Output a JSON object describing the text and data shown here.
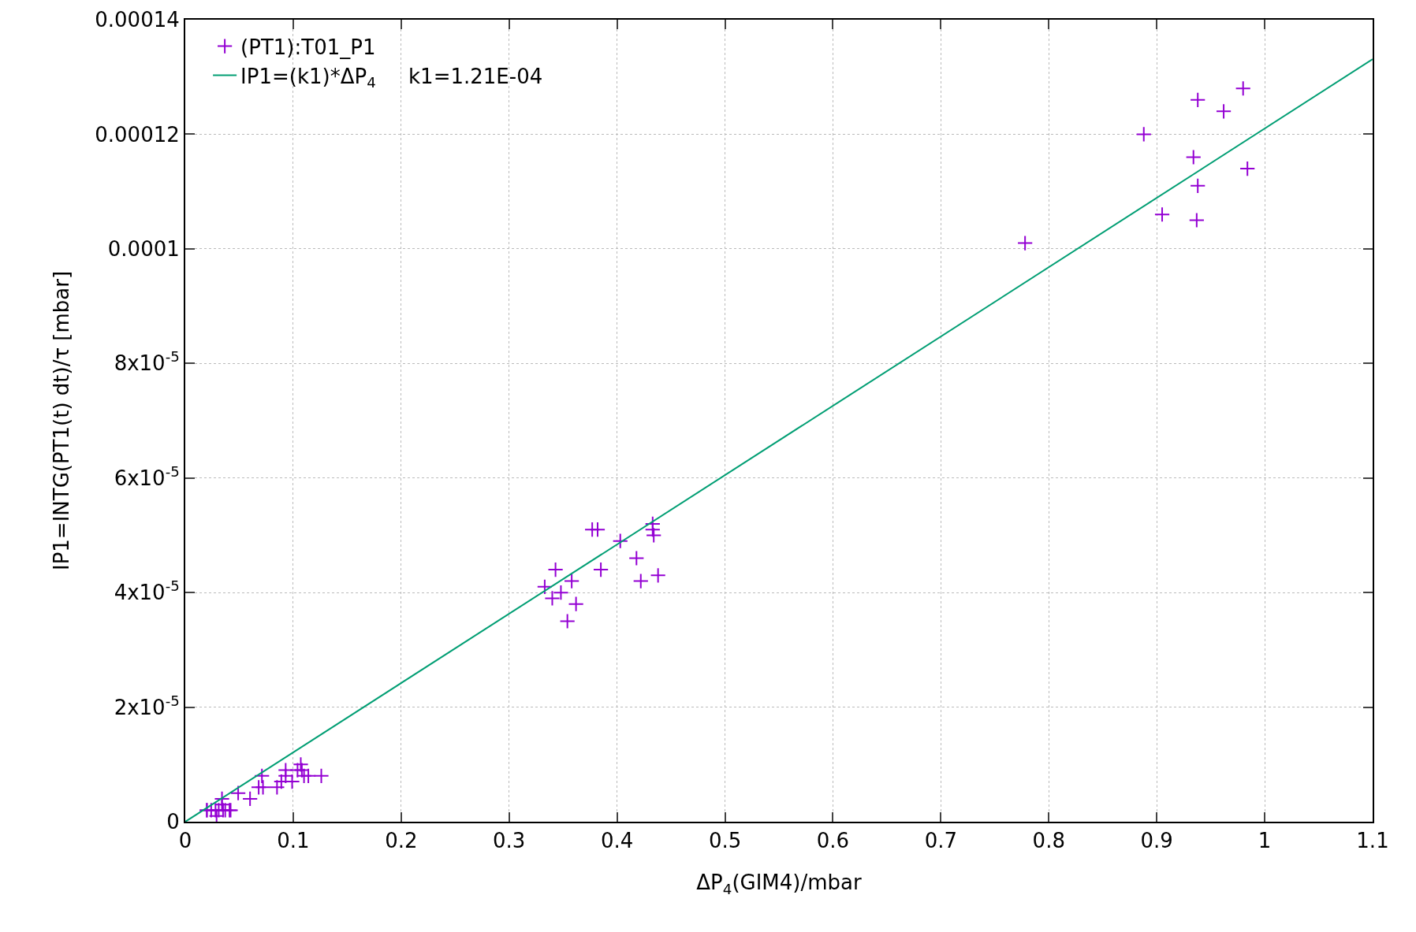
{
  "chart_data": {
    "type": "scatter",
    "xlabel": "ΔP$_{4}$(GIM4)/mbar",
    "ylabel": "IP1=INTG(PT1(t) dt)/τ [mbar]",
    "xlim": [
      0,
      1.1
    ],
    "xticks": [
      0,
      0.1,
      0.2,
      0.3,
      0.4,
      0.5,
      0.6,
      0.7,
      0.8,
      0.9,
      1,
      1.1
    ],
    "ylim": [
      0,
      0.00014
    ],
    "yticks": [
      0,
      {
        "value": 2e-05,
        "label": "2x10$^{-5}$"
      },
      {
        "value": 4e-05,
        "label": "4x10$^{-5}$"
      },
      {
        "value": 6e-05,
        "label": "6x10$^{-5}$"
      },
      {
        "value": 8e-05,
        "label": "8x10$^{-5}$"
      },
      0.0001,
      0.00012,
      0.00014
    ],
    "grid": true,
    "legend": "top left",
    "series": [
      {
        "name": "(PT1):T01_P1",
        "marker": "cross",
        "color": "#9400d3",
        "x": [
          0.02,
          0.02,
          0.024,
          0.028,
          0.029,
          0.031,
          0.034,
          0.034,
          0.035,
          0.037,
          0.041,
          0.042,
          0.049,
          0.06,
          0.068,
          0.071,
          0.072,
          0.085,
          0.089,
          0.093,
          0.093,
          0.099,
          0.104,
          0.107,
          0.108,
          0.11,
          0.114,
          0.126,
          0.333,
          0.343,
          0.34,
          0.348,
          0.354,
          0.358,
          0.362,
          0.377,
          0.382,
          0.385,
          0.403,
          0.418,
          0.422,
          0.433,
          0.433,
          0.434,
          0.438,
          0.778,
          0.888,
          0.905,
          0.934,
          0.938,
          0.938,
          0.937,
          0.962,
          0.98,
          0.984
        ],
        "values": [
          2e-06,
          2e-06,
          2e-06,
          2e-06,
          1e-06,
          2e-06,
          4e-06,
          3e-06,
          2e-06,
          2e-06,
          2e-06,
          2e-06,
          5e-06,
          4e-06,
          6e-06,
          8e-06,
          6e-06,
          6e-06,
          7e-06,
          9e-06,
          8e-06,
          7e-06,
          9e-06,
          1e-05,
          9e-06,
          8e-06,
          8e-06,
          8e-06,
          4.1e-05,
          4.4e-05,
          3.9e-05,
          4e-05,
          3.5e-05,
          4.2e-05,
          3.8e-05,
          5.1e-05,
          5.1e-05,
          4.4e-05,
          4.9e-05,
          4.6e-05,
          4.2e-05,
          5.2e-05,
          5.1e-05,
          5e-05,
          4.3e-05,
          0.000101,
          0.00012,
          0.000106,
          0.000116,
          0.000126,
          0.000111,
          0.000105,
          0.000124,
          0.000128,
          0.000114
        ]
      },
      {
        "name": "IP1=(k1)*ΔP$_{4}$     k1=1.21E-04",
        "type": "line",
        "marker": "none",
        "color": "#009e73",
        "line_style": "solid",
        "x": [
          0,
          1.1
        ],
        "values": [
          0,
          0.0001331
        ]
      }
    ]
  }
}
